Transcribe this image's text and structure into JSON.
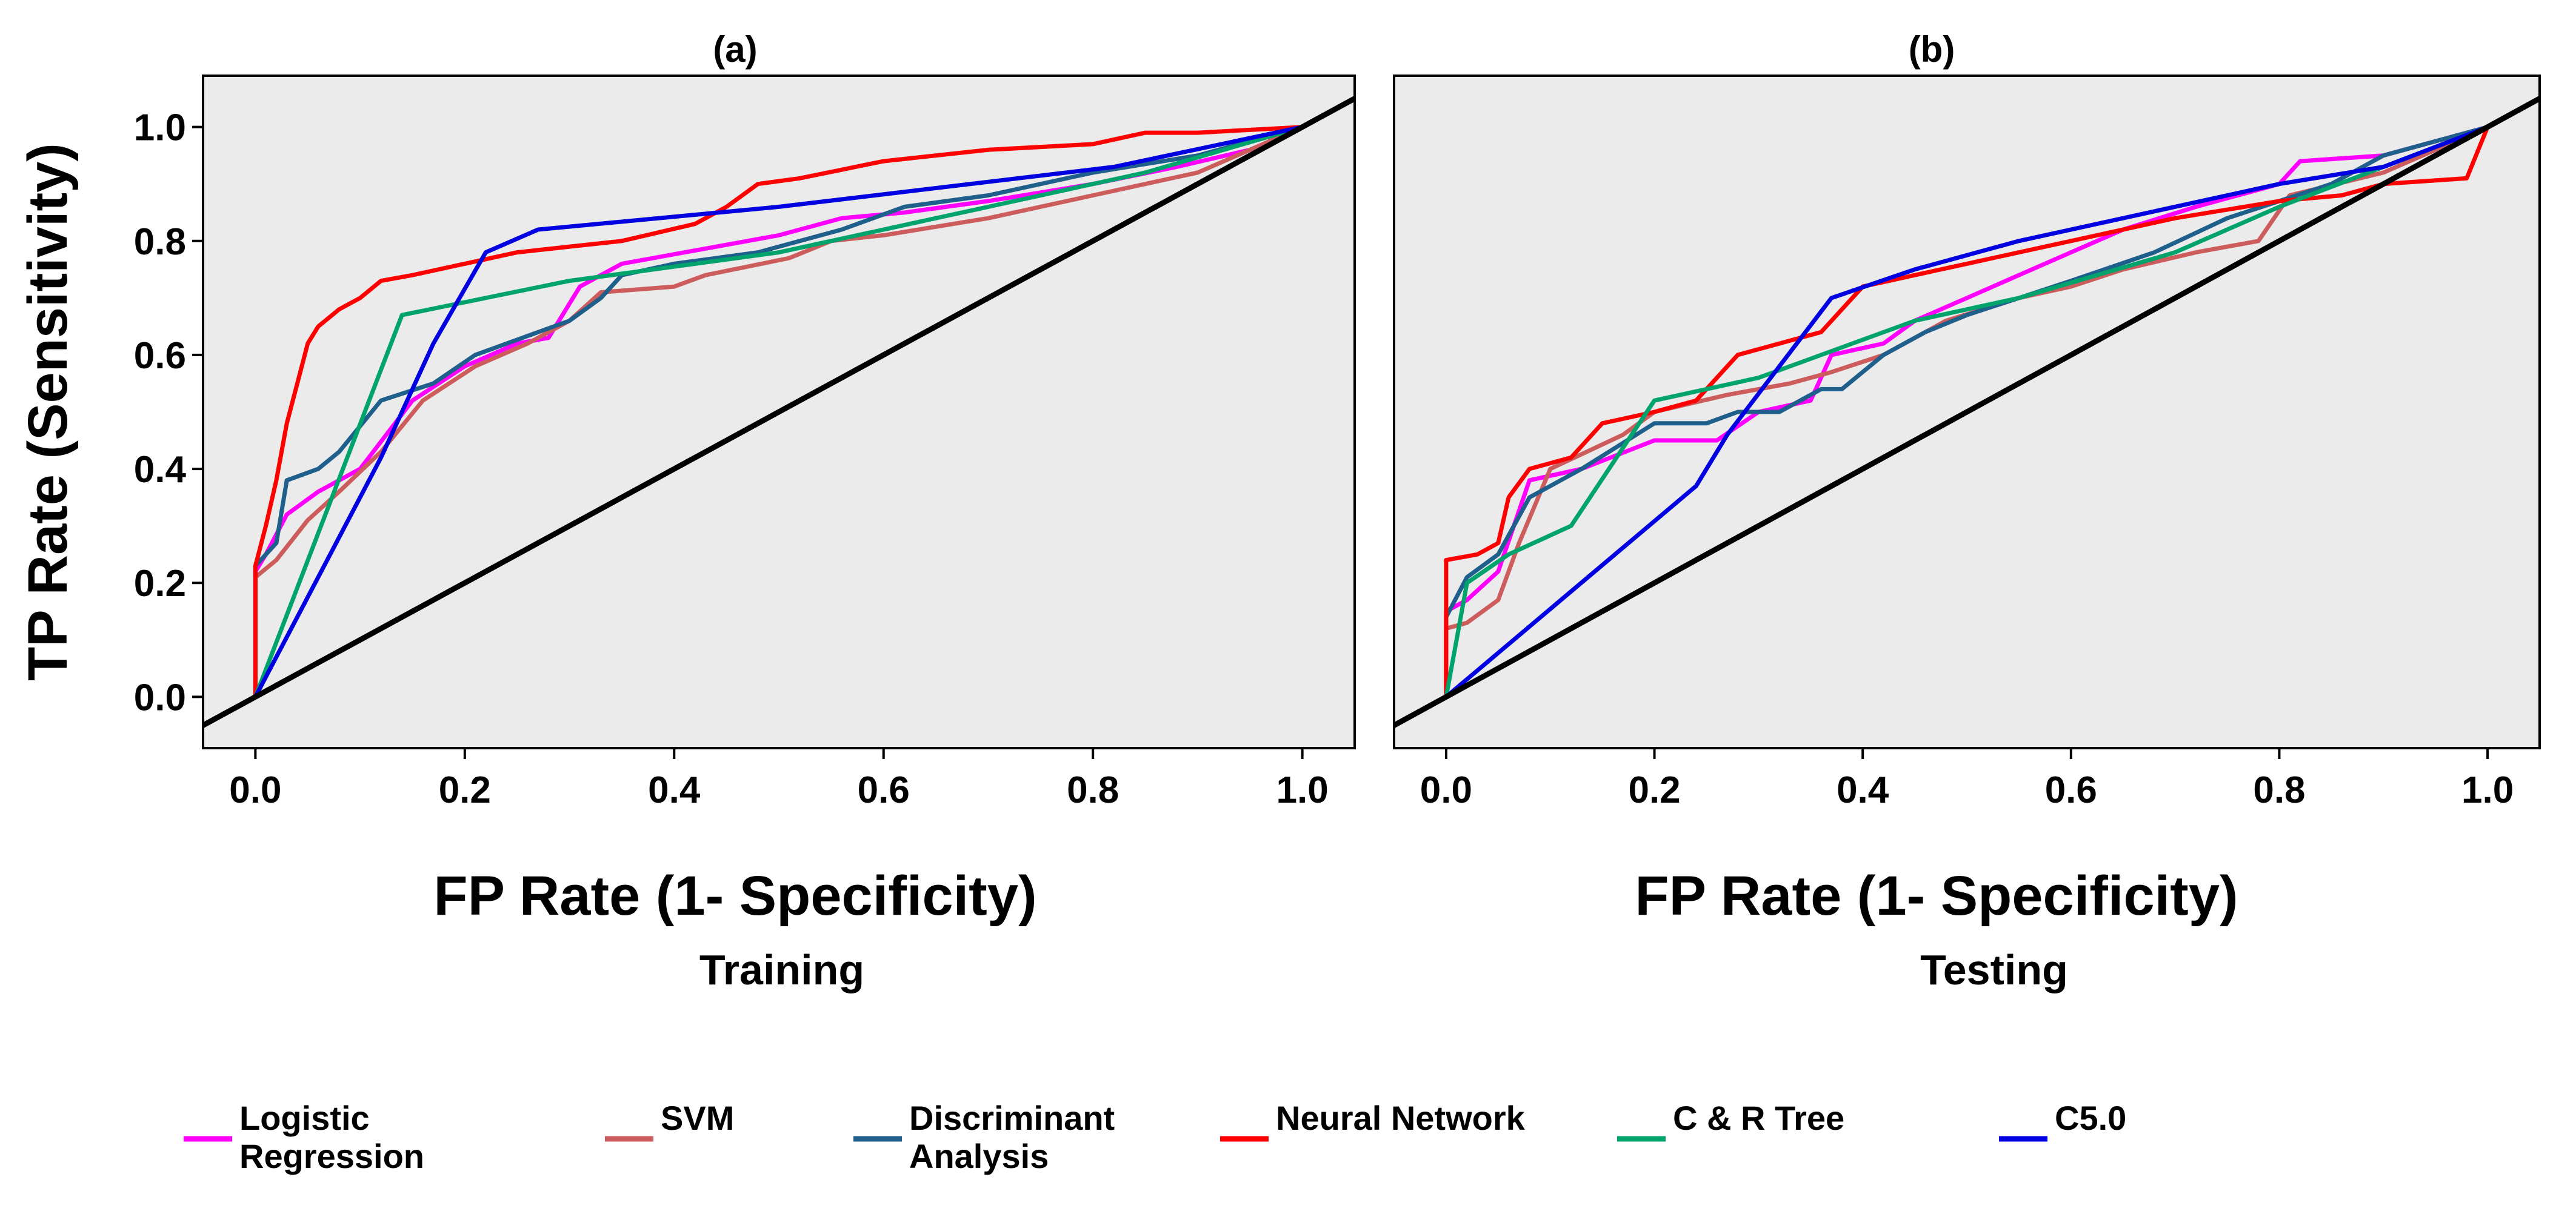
{
  "chart_data": [
    {
      "type": "line",
      "panel_title": "(a)",
      "title": "Training",
      "xlabel": "FP Rate (1- Specificity)",
      "ylabel": "TP Rate (Sensitivity)",
      "xlim": [
        -0.05,
        1.05
      ],
      "ylim": [
        -0.09,
        1.09
      ],
      "xticks": [
        "0.0",
        "0.2",
        "0.4",
        "0.6",
        "0.8",
        "1.0"
      ],
      "yticks": [
        "0.0",
        "0.2",
        "0.4",
        "0.6",
        "0.8",
        "1.0"
      ],
      "grid": false,
      "series": [
        {
          "name": "Logistic Regression",
          "color": "#ff00ff",
          "points": [
            [
              0,
              0
            ],
            [
              0,
              0.22
            ],
            [
              0.01,
              0.25
            ],
            [
              0.03,
              0.32
            ],
            [
              0.06,
              0.36
            ],
            [
              0.1,
              0.4
            ],
            [
              0.15,
              0.52
            ],
            [
              0.2,
              0.58
            ],
            [
              0.25,
              0.62
            ],
            [
              0.28,
              0.63
            ],
            [
              0.31,
              0.72
            ],
            [
              0.35,
              0.76
            ],
            [
              0.41,
              0.78
            ],
            [
              0.5,
              0.81
            ],
            [
              0.56,
              0.84
            ],
            [
              0.62,
              0.85
            ],
            [
              0.7,
              0.87
            ],
            [
              0.8,
              0.9
            ],
            [
              0.88,
              0.93
            ],
            [
              0.95,
              0.96
            ],
            [
              1,
              1
            ]
          ]
        },
        {
          "name": "SVM",
          "color": "#cd5c5c",
          "points": [
            [
              0,
              0
            ],
            [
              0,
              0.21
            ],
            [
              0.02,
              0.24
            ],
            [
              0.05,
              0.31
            ],
            [
              0.08,
              0.36
            ],
            [
              0.12,
              0.43
            ],
            [
              0.16,
              0.52
            ],
            [
              0.21,
              0.58
            ],
            [
              0.26,
              0.62
            ],
            [
              0.3,
              0.66
            ],
            [
              0.33,
              0.71
            ],
            [
              0.4,
              0.72
            ],
            [
              0.43,
              0.74
            ],
            [
              0.51,
              0.77
            ],
            [
              0.55,
              0.8
            ],
            [
              0.6,
              0.81
            ],
            [
              0.7,
              0.84
            ],
            [
              0.8,
              0.88
            ],
            [
              0.9,
              0.92
            ],
            [
              1,
              1
            ]
          ]
        },
        {
          "name": "Discriminant Analysis",
          "color": "#1f5f8b",
          "points": [
            [
              0,
              0
            ],
            [
              0,
              0.23
            ],
            [
              0.02,
              0.27
            ],
            [
              0.03,
              0.38
            ],
            [
              0.06,
              0.4
            ],
            [
              0.08,
              0.43
            ],
            [
              0.12,
              0.52
            ],
            [
              0.17,
              0.55
            ],
            [
              0.21,
              0.6
            ],
            [
              0.27,
              0.64
            ],
            [
              0.3,
              0.66
            ],
            [
              0.33,
              0.7
            ],
            [
              0.35,
              0.74
            ],
            [
              0.4,
              0.76
            ],
            [
              0.48,
              0.78
            ],
            [
              0.56,
              0.82
            ],
            [
              0.62,
              0.86
            ],
            [
              0.7,
              0.88
            ],
            [
              0.8,
              0.92
            ],
            [
              0.9,
              0.95
            ],
            [
              1,
              1
            ]
          ]
        },
        {
          "name": "Neural Network",
          "color": "#ff0000",
          "points": [
            [
              0,
              0
            ],
            [
              0,
              0.23
            ],
            [
              0.01,
              0.3
            ],
            [
              0.02,
              0.38
            ],
            [
              0.03,
              0.48
            ],
            [
              0.04,
              0.55
            ],
            [
              0.05,
              0.62
            ],
            [
              0.06,
              0.65
            ],
            [
              0.08,
              0.68
            ],
            [
              0.1,
              0.7
            ],
            [
              0.12,
              0.73
            ],
            [
              0.15,
              0.74
            ],
            [
              0.2,
              0.76
            ],
            [
              0.25,
              0.78
            ],
            [
              0.35,
              0.8
            ],
            [
              0.42,
              0.83
            ],
            [
              0.45,
              0.86
            ],
            [
              0.48,
              0.9
            ],
            [
              0.52,
              0.91
            ],
            [
              0.6,
              0.94
            ],
            [
              0.7,
              0.96
            ],
            [
              0.8,
              0.97
            ],
            [
              0.85,
              0.99
            ],
            [
              0.9,
              0.99
            ],
            [
              1,
              1
            ]
          ]
        },
        {
          "name": "C & R Tree",
          "color": "#00a36c",
          "points": [
            [
              0,
              0
            ],
            [
              0.14,
              0.67
            ],
            [
              0.3,
              0.73
            ],
            [
              0.5,
              0.78
            ],
            [
              0.7,
              0.86
            ],
            [
              0.85,
              0.92
            ],
            [
              1,
              1
            ]
          ]
        },
        {
          "name": "C5.0",
          "color": "#0000e0",
          "points": [
            [
              0,
              0
            ],
            [
              0.12,
              0.42
            ],
            [
              0.17,
              0.62
            ],
            [
              0.22,
              0.78
            ],
            [
              0.27,
              0.82
            ],
            [
              0.5,
              0.86
            ],
            [
              0.82,
              0.93
            ],
            [
              1,
              1
            ]
          ]
        },
        {
          "name": "Reference",
          "color": "#000000",
          "points": [
            [
              -0.05,
              -0.05
            ],
            [
              1.05,
              1.05
            ]
          ]
        }
      ]
    },
    {
      "type": "line",
      "panel_title": "(b)",
      "title": "Testing",
      "xlabel": "FP Rate (1- Specificity)",
      "ylabel": "",
      "xlim": [
        -0.05,
        1.05
      ],
      "ylim": [
        -0.09,
        1.09
      ],
      "xticks": [
        "0.0",
        "0.2",
        "0.4",
        "0.6",
        "0.8",
        "1.0"
      ],
      "yticks": [],
      "grid": false,
      "series": [
        {
          "name": "Logistic Regression",
          "color": "#ff00ff",
          "points": [
            [
              0,
              0
            ],
            [
              0,
              0.15
            ],
            [
              0.02,
              0.17
            ],
            [
              0.05,
              0.22
            ],
            [
              0.08,
              0.38
            ],
            [
              0.13,
              0.4
            ],
            [
              0.2,
              0.45
            ],
            [
              0.26,
              0.45
            ],
            [
              0.3,
              0.5
            ],
            [
              0.35,
              0.52
            ],
            [
              0.37,
              0.6
            ],
            [
              0.42,
              0.62
            ],
            [
              0.45,
              0.66
            ],
            [
              0.5,
              0.7
            ],
            [
              0.55,
              0.74
            ],
            [
              0.6,
              0.78
            ],
            [
              0.65,
              0.82
            ],
            [
              0.72,
              0.86
            ],
            [
              0.8,
              0.9
            ],
            [
              0.82,
              0.94
            ],
            [
              0.9,
              0.95
            ],
            [
              1,
              1
            ]
          ]
        },
        {
          "name": "SVM",
          "color": "#cd5c5c",
          "points": [
            [
              0,
              0
            ],
            [
              0,
              0.12
            ],
            [
              0.02,
              0.13
            ],
            [
              0.05,
              0.17
            ],
            [
              0.07,
              0.27
            ],
            [
              0.1,
              0.4
            ],
            [
              0.17,
              0.46
            ],
            [
              0.2,
              0.5
            ],
            [
              0.27,
              0.53
            ],
            [
              0.33,
              0.55
            ],
            [
              0.37,
              0.57
            ],
            [
              0.42,
              0.6
            ],
            [
              0.48,
              0.66
            ],
            [
              0.55,
              0.7
            ],
            [
              0.6,
              0.72
            ],
            [
              0.65,
              0.75
            ],
            [
              0.72,
              0.78
            ],
            [
              0.78,
              0.8
            ],
            [
              0.81,
              0.88
            ],
            [
              0.9,
              0.92
            ],
            [
              1,
              1
            ]
          ]
        },
        {
          "name": "Discriminant Analysis",
          "color": "#1f5f8b",
          "points": [
            [
              0,
              0
            ],
            [
              0,
              0.14
            ],
            [
              0.02,
              0.21
            ],
            [
              0.05,
              0.25
            ],
            [
              0.08,
              0.35
            ],
            [
              0.13,
              0.4
            ],
            [
              0.2,
              0.48
            ],
            [
              0.25,
              0.48
            ],
            [
              0.28,
              0.5
            ],
            [
              0.32,
              0.5
            ],
            [
              0.36,
              0.54
            ],
            [
              0.38,
              0.54
            ],
            [
              0.42,
              0.6
            ],
            [
              0.46,
              0.64
            ],
            [
              0.5,
              0.67
            ],
            [
              0.55,
              0.7
            ],
            [
              0.6,
              0.73
            ],
            [
              0.68,
              0.78
            ],
            [
              0.75,
              0.84
            ],
            [
              0.85,
              0.9
            ],
            [
              0.9,
              0.95
            ],
            [
              1,
              1
            ]
          ]
        },
        {
          "name": "Neural Network",
          "color": "#ff0000",
          "points": [
            [
              0,
              0
            ],
            [
              0,
              0.24
            ],
            [
              0.03,
              0.25
            ],
            [
              0.05,
              0.27
            ],
            [
              0.06,
              0.35
            ],
            [
              0.08,
              0.4
            ],
            [
              0.12,
              0.42
            ],
            [
              0.15,
              0.48
            ],
            [
              0.2,
              0.5
            ],
            [
              0.24,
              0.52
            ],
            [
              0.28,
              0.6
            ],
            [
              0.32,
              0.62
            ],
            [
              0.36,
              0.64
            ],
            [
              0.4,
              0.72
            ],
            [
              0.45,
              0.74
            ],
            [
              0.5,
              0.76
            ],
            [
              0.6,
              0.8
            ],
            [
              0.7,
              0.84
            ],
            [
              0.8,
              0.87
            ],
            [
              0.86,
              0.88
            ],
            [
              0.9,
              0.9
            ],
            [
              0.98,
              0.91
            ],
            [
              1,
              1
            ]
          ]
        },
        {
          "name": "C & R Tree",
          "color": "#00a36c",
          "points": [
            [
              0,
              0
            ],
            [
              0.02,
              0.2
            ],
            [
              0.06,
              0.25
            ],
            [
              0.12,
              0.3
            ],
            [
              0.2,
              0.52
            ],
            [
              0.3,
              0.56
            ],
            [
              0.45,
              0.66
            ],
            [
              0.55,
              0.7
            ],
            [
              0.7,
              0.78
            ],
            [
              0.8,
              0.86
            ],
            [
              0.9,
              0.93
            ],
            [
              1,
              1
            ]
          ]
        },
        {
          "name": "C5.0",
          "color": "#0000e0",
          "points": [
            [
              0,
              0
            ],
            [
              0.24,
              0.37
            ],
            [
              0.27,
              0.46
            ],
            [
              0.37,
              0.7
            ],
            [
              0.45,
              0.75
            ],
            [
              0.55,
              0.8
            ],
            [
              0.65,
              0.84
            ],
            [
              0.8,
              0.9
            ],
            [
              0.9,
              0.93
            ],
            [
              1,
              1
            ]
          ]
        },
        {
          "name": "Reference",
          "color": "#000000",
          "points": [
            [
              -0.05,
              -0.05
            ],
            [
              1.05,
              1.05
            ]
          ]
        }
      ]
    }
  ],
  "legend": {
    "placement": "bottom",
    "items": [
      {
        "line1": "Logistic",
        "line2": "Regression",
        "color": "#ff00ff"
      },
      {
        "line1": "SVM",
        "line2": "",
        "color": "#cd5c5c"
      },
      {
        "line1": "Discriminant",
        "line2": "Analysis",
        "color": "#1f5f8b"
      },
      {
        "line1": "Neural Network",
        "line2": "",
        "color": "#ff0000"
      },
      {
        "line1": "C & R Tree",
        "line2": "",
        "color": "#00a36c"
      },
      {
        "line1": "C5.0",
        "line2": "",
        "color": "#0000e0"
      }
    ]
  }
}
